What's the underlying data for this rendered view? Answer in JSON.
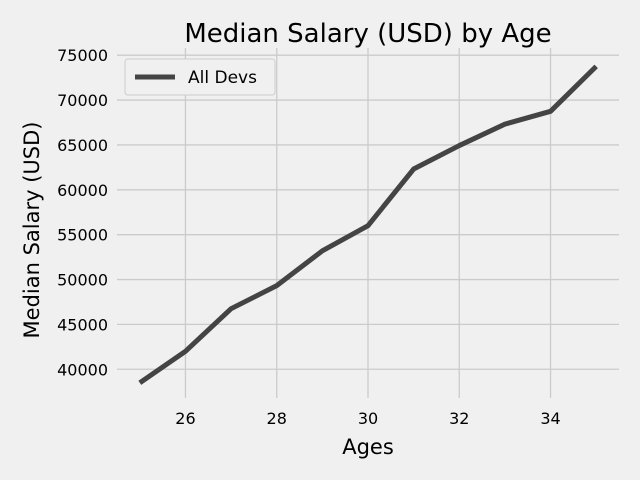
{
  "chart_data": {
    "type": "line",
    "title": "Median Salary (USD) by Age",
    "xlabel": "Ages",
    "ylabel": "Median Salary (USD)",
    "xlim": [
      24.5,
      35.5
    ],
    "ylim": [
      36800,
      75800
    ],
    "x_ticks": [
      26,
      28,
      30,
      32,
      34
    ],
    "x_tick_labels": [
      "26",
      "28",
      "30",
      "32",
      "34"
    ],
    "y_ticks": [
      40000,
      45000,
      50000,
      55000,
      60000,
      65000,
      70000,
      75000
    ],
    "y_tick_labels": [
      "40000",
      "45000",
      "50000",
      "55000",
      "60000",
      "65000",
      "70000",
      "75000"
    ],
    "grid": true,
    "legend_position": "top-left",
    "series": [
      {
        "name": "All Devs",
        "color": "#444444",
        "x": [
          25,
          26,
          27,
          28,
          29,
          30,
          31,
          32,
          33,
          34,
          35
        ],
        "values": [
          38496,
          42000,
          46752,
          49320,
          53200,
          56000,
          62316,
          64928,
          67317,
          68748,
          73752
        ]
      }
    ]
  }
}
